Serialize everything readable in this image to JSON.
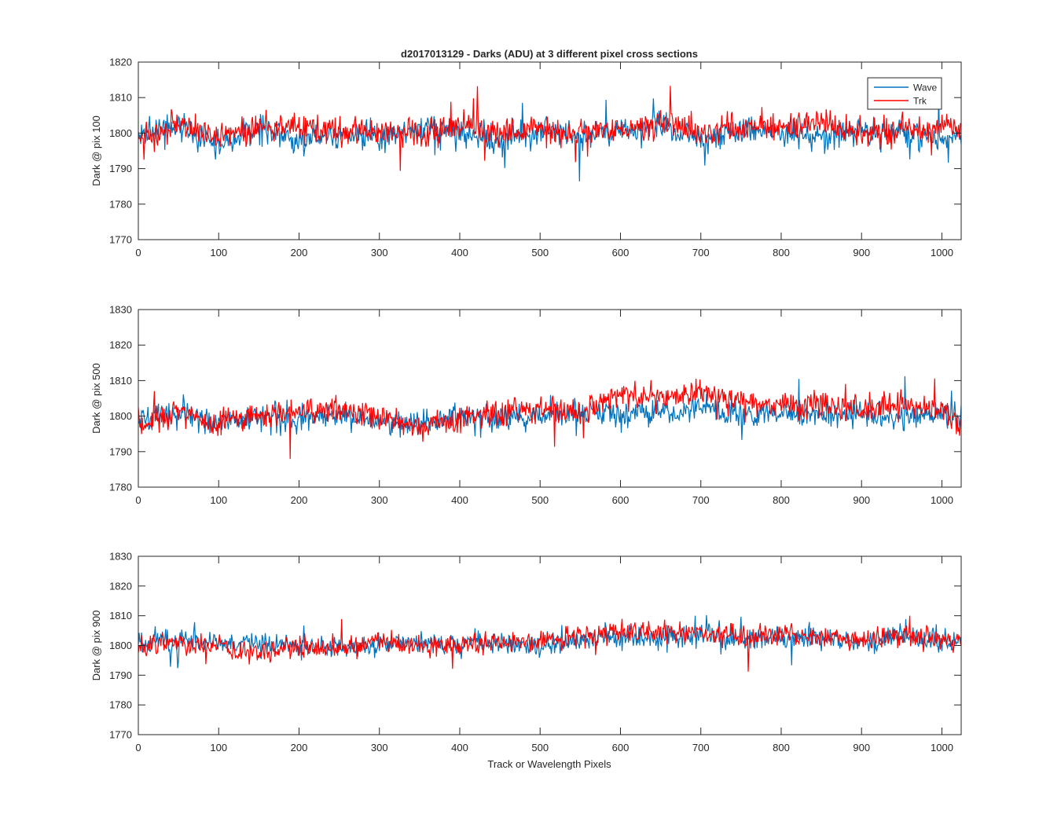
{
  "figure": {
    "title": "d2017013129 - Darks (ADU) at 3 different pixel cross sections",
    "xlabel": "Track or Wavelength Pixels"
  },
  "legend": {
    "placement": "top-right",
    "entries": [
      {
        "name": "Wave",
        "color": "#0072BD"
      },
      {
        "name": "Trk",
        "color": "#FF0000"
      }
    ]
  },
  "chart_data": [
    {
      "type": "line",
      "ylabel": "Dark @ pix 100",
      "xlim": [
        0,
        1024
      ],
      "ylim": [
        1770,
        1820
      ],
      "xticks": [
        0,
        100,
        200,
        300,
        400,
        500,
        600,
        700,
        800,
        900,
        1000
      ],
      "yticks": [
        1770,
        1780,
        1790,
        1800,
        1810,
        1820
      ],
      "grid": false,
      "series": [
        {
          "name": "Wave",
          "color": "#0072BD",
          "x": [
            0,
            50,
            100,
            150,
            200,
            250,
            300,
            350,
            400,
            450,
            500,
            550,
            600,
            650,
            700,
            750,
            800,
            850,
            900,
            950,
            1000,
            1024
          ],
          "values": [
            1799,
            1802,
            1797,
            1801,
            1798,
            1800,
            1799,
            1801,
            1800,
            1798,
            1801,
            1799,
            1800,
            1802,
            1798,
            1801,
            1800,
            1799,
            1801,
            1800,
            1798,
            1800
          ]
        },
        {
          "name": "Trk",
          "color": "#FF0000",
          "x": [
            0,
            50,
            100,
            150,
            200,
            250,
            300,
            350,
            400,
            450,
            500,
            550,
            600,
            650,
            700,
            750,
            800,
            850,
            900,
            950,
            1000,
            1024
          ],
          "values": [
            1797,
            1803,
            1799,
            1801,
            1802,
            1800,
            1801,
            1799,
            1802,
            1800,
            1801,
            1800,
            1801,
            1803,
            1800,
            1802,
            1801,
            1803,
            1800,
            1801,
            1802,
            1800
          ]
        }
      ]
    },
    {
      "type": "line",
      "ylabel": "Dark @ pix 500",
      "xlim": [
        0,
        1024
      ],
      "ylim": [
        1780,
        1830
      ],
      "xticks": [
        0,
        100,
        200,
        300,
        400,
        500,
        600,
        700,
        800,
        900,
        1000
      ],
      "yticks": [
        1780,
        1790,
        1800,
        1810,
        1820,
        1830
      ],
      "grid": false,
      "series": [
        {
          "name": "Wave",
          "color": "#0072BD",
          "x": [
            0,
            50,
            100,
            150,
            200,
            250,
            300,
            350,
            400,
            450,
            500,
            550,
            600,
            650,
            700,
            750,
            800,
            850,
            900,
            950,
            1000,
            1024
          ],
          "values": [
            1799,
            1801,
            1798,
            1800,
            1799,
            1801,
            1799,
            1798,
            1800,
            1799,
            1800,
            1801,
            1800,
            1801,
            1802,
            1800,
            1801,
            1800,
            1801,
            1800,
            1801,
            1799
          ]
        },
        {
          "name": "Trk",
          "color": "#FF0000",
          "x": [
            0,
            50,
            100,
            150,
            200,
            250,
            300,
            350,
            400,
            450,
            500,
            550,
            600,
            650,
            700,
            750,
            800,
            850,
            900,
            950,
            1000,
            1024
          ],
          "values": [
            1797,
            1801,
            1799,
            1800,
            1801,
            1802,
            1800,
            1797,
            1799,
            1801,
            1802,
            1802,
            1806,
            1805,
            1807,
            1804,
            1803,
            1804,
            1802,
            1803,
            1802,
            1796
          ]
        }
      ]
    },
    {
      "type": "line",
      "ylabel": "Dark @ pix 900",
      "xlim": [
        0,
        1024
      ],
      "ylim": [
        1770,
        1830
      ],
      "xticks": [
        0,
        100,
        200,
        300,
        400,
        500,
        600,
        700,
        800,
        900,
        1000
      ],
      "yticks": [
        1770,
        1780,
        1790,
        1800,
        1810,
        1820,
        1830
      ],
      "grid": false,
      "series": [
        {
          "name": "Wave",
          "color": "#0072BD",
          "x": [
            0,
            50,
            100,
            150,
            200,
            250,
            300,
            350,
            400,
            450,
            500,
            550,
            600,
            650,
            700,
            750,
            800,
            850,
            900,
            950,
            1000,
            1024
          ],
          "values": [
            1801,
            1802,
            1800,
            1801,
            1800,
            1799,
            1800,
            1801,
            1800,
            1801,
            1800,
            1802,
            1803,
            1802,
            1804,
            1802,
            1803,
            1802,
            1801,
            1803,
            1802,
            1800
          ]
        },
        {
          "name": "Trk",
          "color": "#FF0000",
          "x": [
            0,
            50,
            100,
            150,
            200,
            250,
            300,
            350,
            400,
            450,
            500,
            550,
            600,
            650,
            700,
            750,
            800,
            850,
            900,
            950,
            1000,
            1024
          ],
          "values": [
            1799,
            1802,
            1799,
            1797,
            1800,
            1799,
            1801,
            1800,
            1801,
            1801,
            1802,
            1803,
            1804,
            1805,
            1804,
            1803,
            1804,
            1803,
            1802,
            1803,
            1802,
            1802
          ]
        }
      ]
    }
  ]
}
